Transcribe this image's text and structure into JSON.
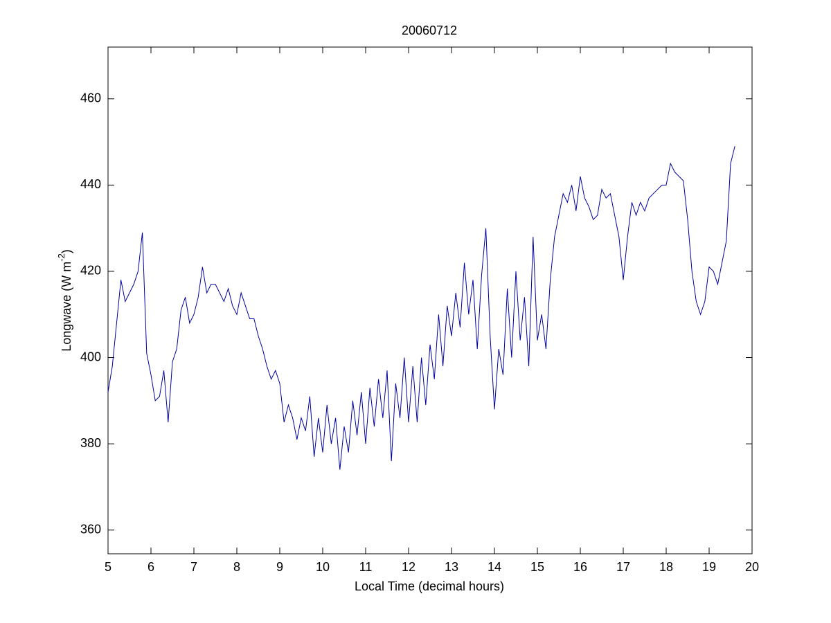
{
  "chart_data": {
    "type": "line",
    "title": "20060712",
    "xlabel": "Local Time (decimal hours)",
    "ylabel": [
      "Longwave (W m",
      "-2",
      ")"
    ],
    "xlim": [
      5,
      20
    ],
    "ylim": [
      354.5,
      472
    ],
    "xticks": [
      5,
      6,
      7,
      8,
      9,
      10,
      11,
      12,
      13,
      14,
      15,
      16,
      17,
      18,
      19,
      20
    ],
    "yticks": [
      360,
      380,
      400,
      420,
      440,
      460
    ],
    "grid": false,
    "series": [
      {
        "name": "Longwave",
        "color": "#0000a0",
        "x": [
          5.0,
          5.1,
          5.2,
          5.3,
          5.4,
          5.5,
          5.6,
          5.7,
          5.8,
          5.9,
          6.0,
          6.1,
          6.2,
          6.3,
          6.4,
          6.5,
          6.6,
          6.7,
          6.8,
          6.9,
          7.0,
          7.1,
          7.2,
          7.3,
          7.4,
          7.5,
          7.6,
          7.7,
          7.8,
          7.9,
          8.0,
          8.1,
          8.2,
          8.3,
          8.4,
          8.5,
          8.6,
          8.7,
          8.8,
          8.9,
          9.0,
          9.1,
          9.2,
          9.3,
          9.4,
          9.5,
          9.6,
          9.7,
          9.8,
          9.9,
          10.0,
          10.1,
          10.2,
          10.3,
          10.4,
          10.5,
          10.6,
          10.7,
          10.8,
          10.9,
          11.0,
          11.1,
          11.2,
          11.3,
          11.4,
          11.5,
          11.6,
          11.7,
          11.8,
          11.9,
          12.0,
          12.1,
          12.2,
          12.3,
          12.4,
          12.5,
          12.6,
          12.7,
          12.8,
          12.9,
          13.0,
          13.1,
          13.2,
          13.3,
          13.4,
          13.5,
          13.6,
          13.7,
          13.8,
          13.9,
          14.0,
          14.1,
          14.2,
          14.3,
          14.4,
          14.5,
          14.6,
          14.7,
          14.8,
          14.9,
          15.0,
          15.1,
          15.2,
          15.3,
          15.4,
          15.5,
          15.6,
          15.7,
          15.8,
          15.9,
          16.0,
          16.1,
          16.2,
          16.3,
          16.4,
          16.5,
          16.6,
          16.7,
          16.8,
          16.9,
          17.0,
          17.1,
          17.2,
          17.3,
          17.4,
          17.5,
          17.6,
          17.7,
          17.8,
          17.9,
          18.0,
          18.1,
          18.2,
          18.3,
          18.4,
          18.5,
          18.6,
          18.7,
          18.8,
          18.9,
          19.0,
          19.1,
          19.2,
          19.3,
          19.4,
          19.5,
          19.6
        ],
        "values": [
          392,
          398,
          408,
          418,
          413,
          415,
          417,
          420,
          429,
          401,
          396,
          390,
          391,
          397,
          385,
          399,
          402,
          411,
          414,
          408,
          410,
          414,
          421,
          415,
          417,
          417,
          415,
          413,
          416,
          412,
          410,
          415,
          412,
          409,
          409,
          405,
          402,
          398,
          395,
          397,
          394,
          385,
          389,
          386,
          381,
          386,
          383,
          391,
          377,
          386,
          378,
          389,
          380,
          386,
          374,
          384,
          378,
          390,
          382,
          392,
          380,
          393,
          384,
          395,
          386,
          397,
          376,
          394,
          386,
          400,
          385,
          398,
          385,
          400,
          389,
          403,
          395,
          410,
          398,
          412,
          405,
          415,
          407,
          422,
          410,
          418,
          402,
          419,
          430,
          405,
          388,
          402,
          396,
          416,
          400,
          420,
          404,
          414,
          398,
          428,
          404,
          410,
          402,
          418,
          428,
          433,
          438,
          436,
          440,
          434,
          442,
          437,
          435,
          432,
          433,
          439,
          437,
          438,
          433,
          428,
          418,
          428,
          436,
          433,
          436,
          434,
          437,
          438,
          439,
          440,
          440,
          445,
          443,
          442,
          441,
          432,
          420,
          413,
          410,
          413,
          421,
          420,
          417,
          422,
          427,
          445,
          449
        ]
      }
    ]
  }
}
